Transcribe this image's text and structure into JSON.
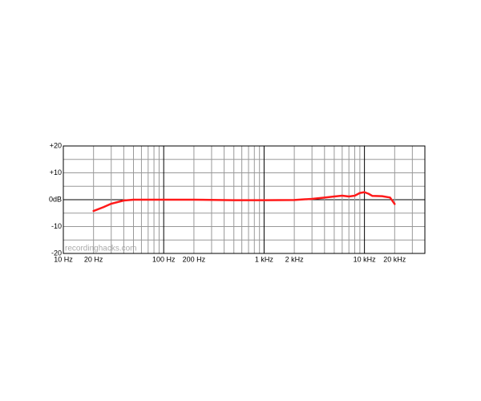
{
  "chart_data": {
    "type": "line",
    "xscale": "log",
    "color": "#ff1a1a",
    "watermark": "recordinghacks.com",
    "x": [
      20,
      25,
      30,
      40,
      50,
      100,
      200,
      500,
      1000,
      2000,
      3000,
      4000,
      5000,
      6000,
      7000,
      8000,
      9000,
      10000,
      11000,
      12000,
      15000,
      18000,
      20000
    ],
    "values": [
      -4.2,
      -2.8,
      -1.5,
      -0.3,
      0,
      0,
      0,
      -0.2,
      -0.2,
      -0.1,
      0.3,
      0.8,
      1.2,
      1.5,
      1.2,
      1.5,
      2.5,
      2.8,
      2.2,
      1.4,
      1.3,
      0.8,
      -1.6
    ],
    "xlim": [
      10,
      40000
    ],
    "xticks": [
      {
        "value": 10,
        "label": "10 Hz"
      },
      {
        "value": 20,
        "label": "20 Hz"
      },
      {
        "value": 30,
        "label": null
      },
      {
        "value": 40,
        "label": null
      },
      {
        "value": 50,
        "label": null
      },
      {
        "value": 60,
        "label": null
      },
      {
        "value": 70,
        "label": null
      },
      {
        "value": 80,
        "label": null
      },
      {
        "value": 90,
        "label": null
      },
      {
        "value": 100,
        "label": "100 Hz"
      },
      {
        "value": 200,
        "label": "200 Hz"
      },
      {
        "value": 300,
        "label": null
      },
      {
        "value": 400,
        "label": null
      },
      {
        "value": 500,
        "label": null
      },
      {
        "value": 600,
        "label": null
      },
      {
        "value": 700,
        "label": null
      },
      {
        "value": 800,
        "label": null
      },
      {
        "value": 900,
        "label": null
      },
      {
        "value": 1000,
        "label": "1 kHz"
      },
      {
        "value": 2000,
        "label": "2 kHz"
      },
      {
        "value": 3000,
        "label": null
      },
      {
        "value": 4000,
        "label": null
      },
      {
        "value": 5000,
        "label": null
      },
      {
        "value": 6000,
        "label": null
      },
      {
        "value": 7000,
        "label": null
      },
      {
        "value": 8000,
        "label": null
      },
      {
        "value": 9000,
        "label": null
      },
      {
        "value": 10000,
        "label": "10 kHz"
      },
      {
        "value": 20000,
        "label": "20 kHz"
      },
      {
        "value": 30000,
        "label": null
      }
    ],
    "ylim": [
      -20,
      20
    ],
    "yticks": [
      {
        "value": 20,
        "label": "+20"
      },
      {
        "value": 15,
        "label": null
      },
      {
        "value": 10,
        "label": "+10"
      },
      {
        "value": 5,
        "label": null
      },
      {
        "value": 0,
        "label": "0dB"
      },
      {
        "value": -5,
        "label": null
      },
      -10,
      {
        "value": -15,
        "label": null
      },
      -20
    ],
    "grid": true
  }
}
